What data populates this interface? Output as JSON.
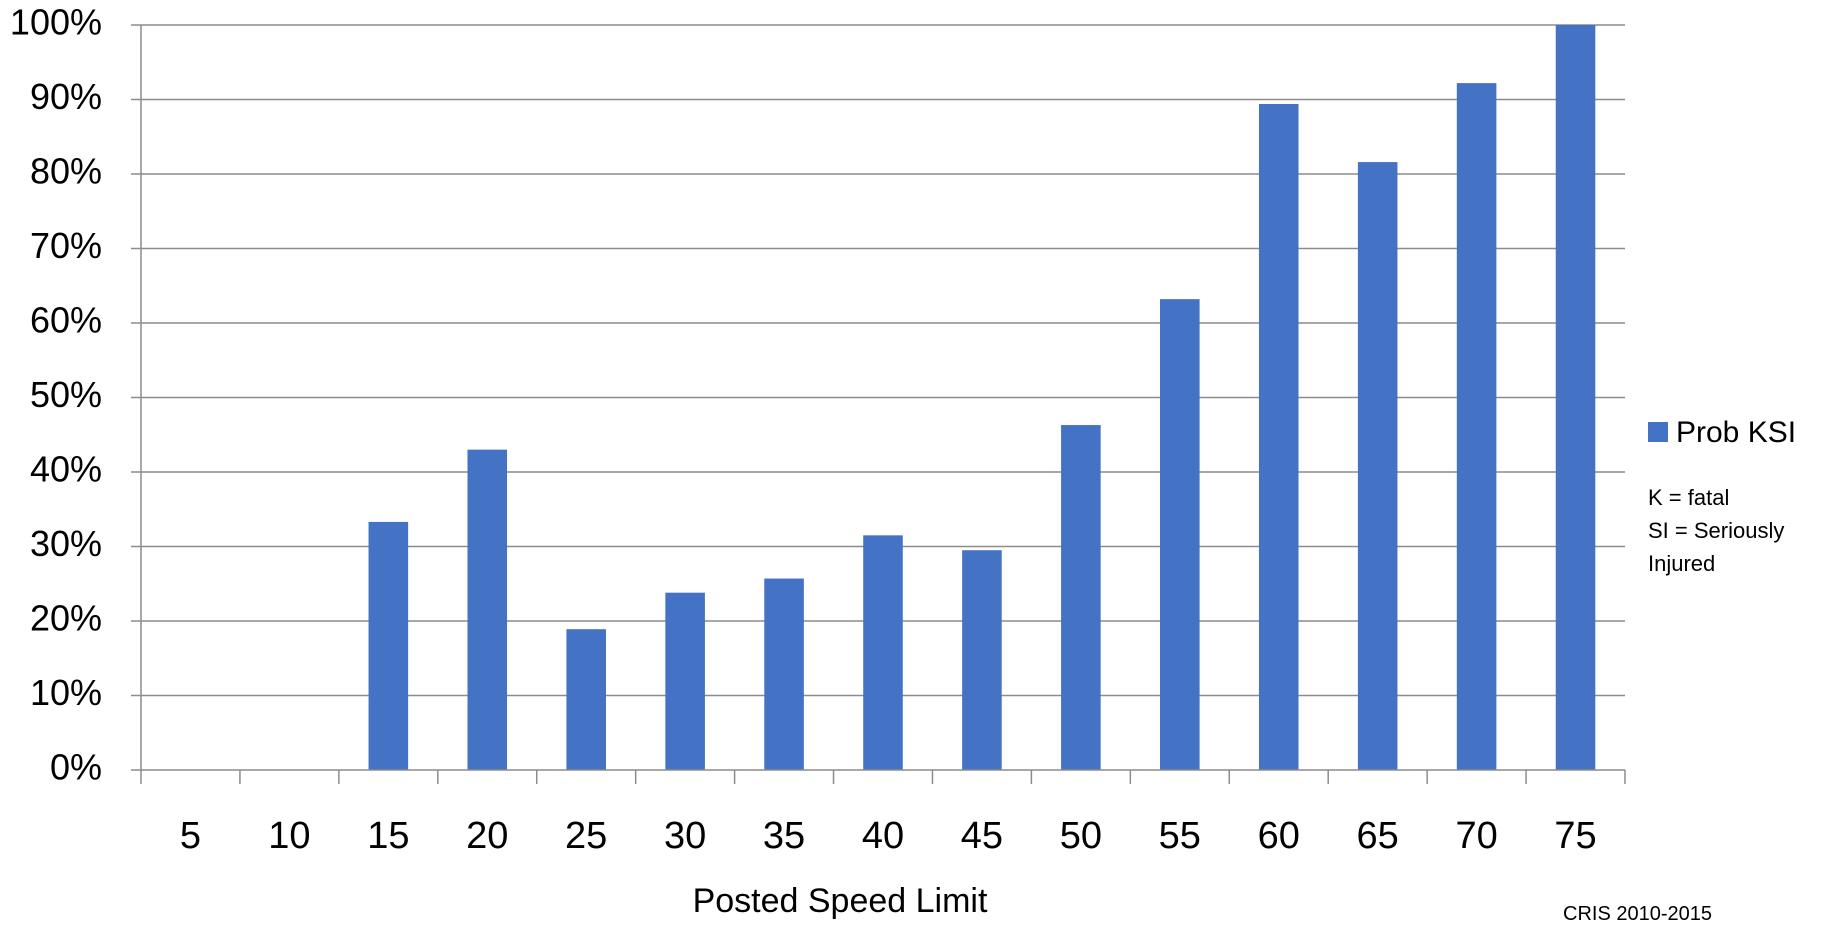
{
  "chart_data": {
    "type": "bar",
    "categories": [
      "5",
      "10",
      "15",
      "20",
      "25",
      "30",
      "35",
      "40",
      "45",
      "50",
      "55",
      "60",
      "65",
      "70",
      "75"
    ],
    "series": [
      {
        "name": "Prob KSI",
        "color": "#4472C4",
        "values": [
          0,
          0,
          33.3,
          43,
          18.9,
          23.8,
          25.7,
          31.5,
          29.5,
          46.3,
          63.2,
          89.4,
          81.6,
          92.2,
          100
        ]
      }
    ],
    "xlabel": "Posted Speed Limit",
    "ylabel": "",
    "ylim": [
      0,
      100
    ],
    "ytick_labels": [
      "0%",
      "10%",
      "20%",
      "30%",
      "40%",
      "50%",
      "60%",
      "70%",
      "80%",
      "90%",
      "100%"
    ],
    "grid": true,
    "legend_position": "right",
    "legend_note": [
      "K = fatal",
      "SI = Seriously",
      "Injured"
    ],
    "source_note": "CRIS 2010-2015"
  }
}
